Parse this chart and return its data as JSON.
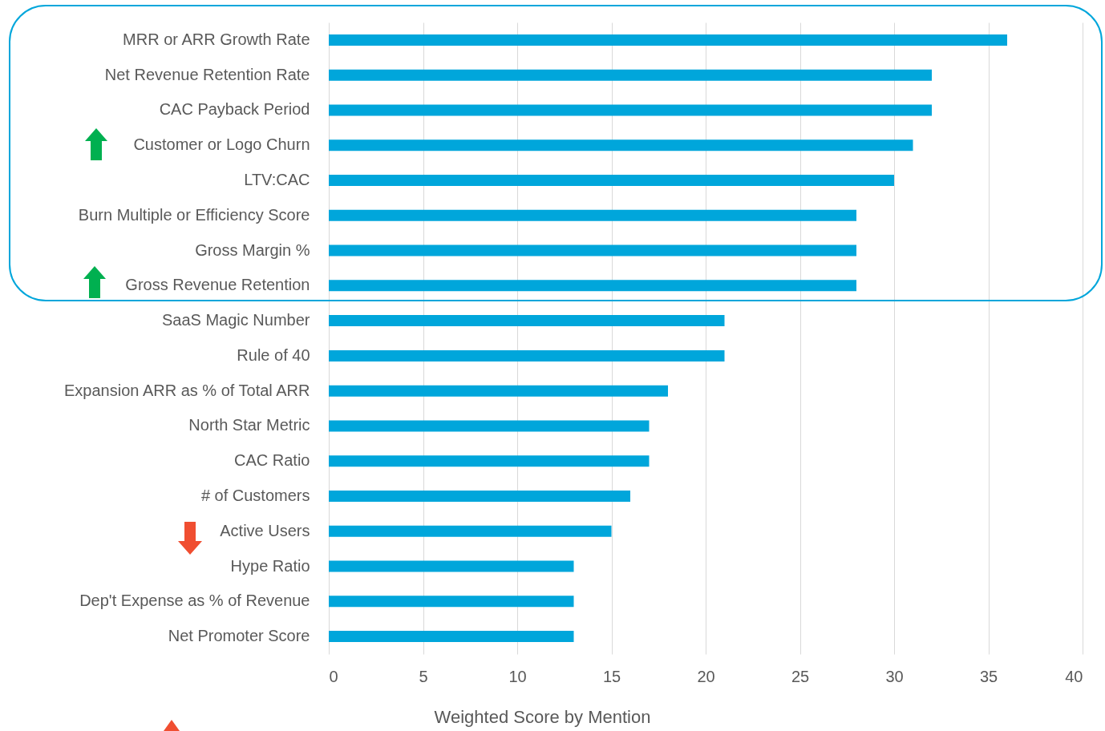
{
  "chart_data": {
    "type": "bar",
    "orientation": "horizontal",
    "xlabel": "Weighted Score by Mention",
    "categories": [
      "MRR or ARR Growth Rate",
      "Net Revenue Retention Rate",
      "CAC Payback Period",
      "Customer or Logo Churn",
      "LTV:CAC",
      "Burn Multiple or Efficiency Score",
      "Gross Margin %",
      "Gross Revenue Retention",
      "SaaS Magic Number",
      "Rule of 40",
      "Expansion ARR as % of Total ARR",
      "North Star Metric",
      "CAC Ratio",
      "# of Customers",
      "Active Users",
      "Hype Ratio",
      "Dep't Expense as % of Revenue",
      "Net Promoter Score"
    ],
    "values": [
      36,
      32,
      32,
      31,
      30,
      28,
      28,
      28,
      21,
      21,
      18,
      17,
      17,
      16,
      15,
      13,
      13,
      13
    ],
    "color": "#00a6db",
    "xlim": [
      0,
      40
    ],
    "xticks": [
      0,
      5,
      10,
      15,
      20,
      25,
      30,
      35,
      40
    ],
    "grid": "x"
  }
}
